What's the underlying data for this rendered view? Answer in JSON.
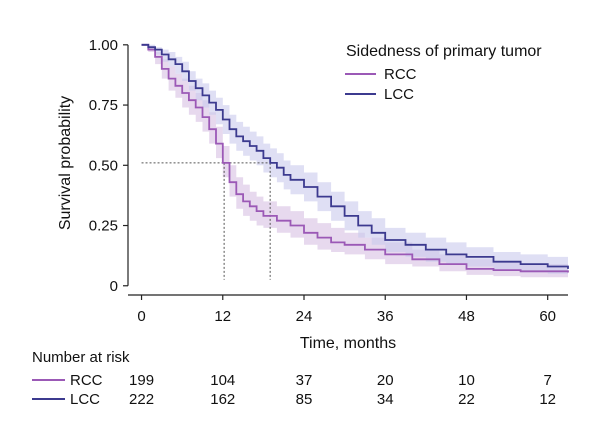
{
  "chart_data": {
    "type": "line",
    "subtype": "kaplan-meier",
    "xlabel": "Time, months",
    "ylabel": "Survival probability",
    "xlim": [
      -2,
      63
    ],
    "ylim": [
      -0.03,
      1.02
    ],
    "xticks": [
      0,
      12,
      24,
      36,
      48,
      60
    ],
    "yticks": [
      0,
      0.25,
      0.5,
      0.75,
      1.0
    ],
    "ytick_labels": [
      "0",
      "0.25",
      "0.50",
      "0.75",
      "1.00"
    ],
    "grid": false,
    "legend": {
      "title": "Sidedness of primary tumor",
      "position": "top-right"
    },
    "median_reference": {
      "y": 0.51,
      "x": [
        12.2,
        19.0
      ],
      "style": "dotted"
    },
    "series": [
      {
        "name": "RCC",
        "color": "#9b59b6",
        "band_color": "#d7bfe2",
        "x": [
          0,
          1,
          2,
          3,
          4,
          5,
          6,
          7,
          8,
          9,
          10,
          11,
          12,
          13,
          14,
          15,
          16,
          17,
          18,
          20,
          22,
          24,
          26,
          28,
          30,
          33,
          36,
          40,
          44,
          48,
          52,
          56,
          60,
          63
        ],
        "y": [
          1.0,
          0.98,
          0.95,
          0.9,
          0.86,
          0.83,
          0.8,
          0.77,
          0.74,
          0.7,
          0.65,
          0.59,
          0.51,
          0.43,
          0.38,
          0.35,
          0.33,
          0.31,
          0.29,
          0.27,
          0.25,
          0.22,
          0.2,
          0.18,
          0.17,
          0.15,
          0.13,
          0.11,
          0.09,
          0.07,
          0.065,
          0.06,
          0.06,
          0.055
        ],
        "ci_lower": [
          1.0,
          0.97,
          0.92,
          0.86,
          0.81,
          0.78,
          0.74,
          0.71,
          0.68,
          0.64,
          0.59,
          0.53,
          0.45,
          0.37,
          0.32,
          0.29,
          0.27,
          0.25,
          0.24,
          0.22,
          0.2,
          0.17,
          0.15,
          0.14,
          0.13,
          0.11,
          0.09,
          0.08,
          0.06,
          0.045,
          0.04,
          0.035,
          0.035,
          0.03
        ],
        "ci_upper": [
          1.0,
          0.99,
          0.97,
          0.94,
          0.91,
          0.88,
          0.86,
          0.83,
          0.8,
          0.77,
          0.72,
          0.66,
          0.58,
          0.5,
          0.45,
          0.42,
          0.39,
          0.37,
          0.35,
          0.33,
          0.31,
          0.28,
          0.26,
          0.24,
          0.22,
          0.2,
          0.18,
          0.15,
          0.13,
          0.11,
          0.1,
          0.09,
          0.09,
          0.085
        ]
      },
      {
        "name": "LCC",
        "color": "#3c3a8f",
        "band_color": "#c9c9ec",
        "x": [
          0,
          1,
          2,
          3,
          4,
          5,
          6,
          7,
          8,
          9,
          10,
          11,
          12,
          13,
          14,
          15,
          16,
          17,
          18,
          19,
          20,
          21,
          22,
          24,
          26,
          28,
          30,
          32,
          34,
          36,
          39,
          42,
          45,
          48,
          52,
          56,
          60,
          63
        ],
        "y": [
          1.0,
          0.99,
          0.98,
          0.96,
          0.94,
          0.92,
          0.89,
          0.85,
          0.82,
          0.79,
          0.76,
          0.73,
          0.69,
          0.65,
          0.62,
          0.6,
          0.58,
          0.56,
          0.53,
          0.51,
          0.49,
          0.46,
          0.44,
          0.41,
          0.37,
          0.33,
          0.29,
          0.25,
          0.22,
          0.19,
          0.17,
          0.15,
          0.13,
          0.12,
          0.1,
          0.09,
          0.08,
          0.07
        ],
        "ci_lower": [
          1.0,
          0.98,
          0.96,
          0.93,
          0.91,
          0.88,
          0.85,
          0.81,
          0.77,
          0.74,
          0.71,
          0.67,
          0.63,
          0.59,
          0.56,
          0.54,
          0.52,
          0.5,
          0.47,
          0.45,
          0.43,
          0.4,
          0.38,
          0.35,
          0.31,
          0.27,
          0.23,
          0.2,
          0.17,
          0.14,
          0.12,
          0.1,
          0.09,
          0.08,
          0.065,
          0.055,
          0.05,
          0.04
        ],
        "ci_upper": [
          1.0,
          1.0,
          0.99,
          0.98,
          0.97,
          0.95,
          0.93,
          0.89,
          0.86,
          0.84,
          0.81,
          0.78,
          0.75,
          0.71,
          0.68,
          0.66,
          0.64,
          0.62,
          0.59,
          0.57,
          0.55,
          0.52,
          0.5,
          0.47,
          0.43,
          0.39,
          0.35,
          0.31,
          0.28,
          0.24,
          0.22,
          0.2,
          0.18,
          0.16,
          0.14,
          0.13,
          0.12,
          0.11
        ]
      }
    ],
    "risk_table": {
      "title": "Number at risk",
      "times": [
        0,
        12,
        24,
        36,
        48,
        60
      ],
      "rows": [
        {
          "name": "RCC",
          "color": "#9b59b6",
          "values": [
            "199",
            "104",
            "37",
            "20",
            "10",
            "7"
          ]
        },
        {
          "name": "LCC",
          "color": "#3c3a8f",
          "values": [
            "222",
            "162",
            "85",
            "34",
            "22",
            "12"
          ]
        }
      ]
    }
  }
}
